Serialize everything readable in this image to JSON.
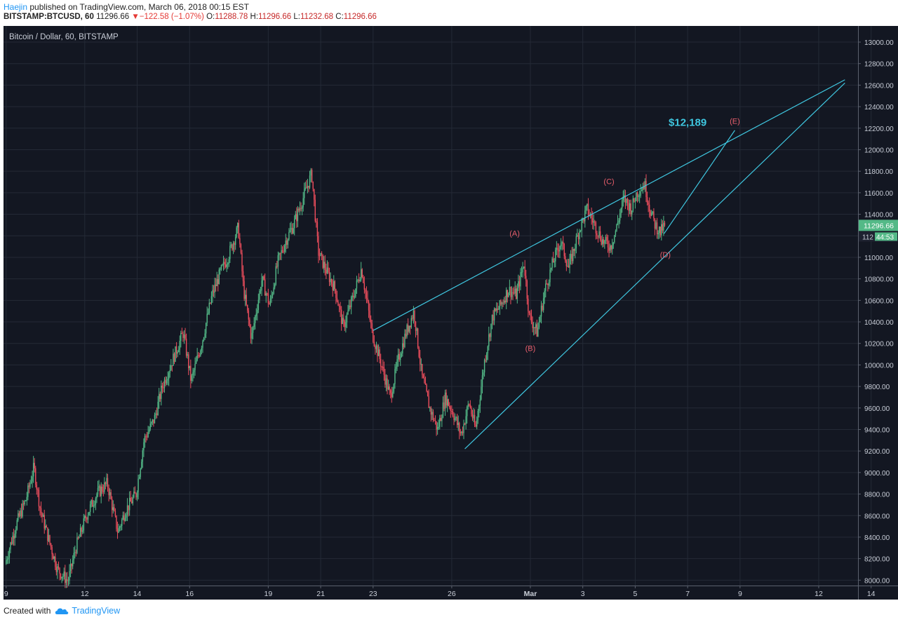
{
  "header": {
    "author": "Haejin",
    "published_text": "published on TradingView.com, March 06, 2018 00:15 EST",
    "symbol": "BITSTAMP:BTCUSD, 60",
    "last": "11296.66",
    "change_arrow": "▼",
    "change": "−122.58 (−1.07%)",
    "o_label": "O:",
    "o_value": "11288.78",
    "h_label": "H:",
    "h_value": "11296.66",
    "l_label": "L:",
    "l_value": "11232.68",
    "c_label": "C:",
    "c_value": "11296.66"
  },
  "footer": {
    "created_with": "Created with",
    "brand": "TradingView"
  },
  "colors": {
    "background": "#131722",
    "grid": "#242a36",
    "up": "#53b987",
    "down": "#eb4d5c",
    "trendline": "#3fc7e0",
    "wave_label": "#e85e6c",
    "price_badge": "#53b987"
  },
  "chart_data": {
    "type": "candlestick",
    "title": "Bitcoin / Dollar, 60, BITSTAMP",
    "interval_minutes": 60,
    "y_axis": {
      "range": [
        7950,
        13150
      ],
      "ticks": [
        8000,
        8200,
        8400,
        8600,
        8800,
        9000,
        9200,
        9400,
        9600,
        9800,
        10000,
        10200,
        10400,
        10600,
        10800,
        11000,
        11200,
        11400,
        11600,
        11800,
        12000,
        12200,
        12400,
        12600,
        12800,
        13000
      ],
      "tick_labels": [
        "8000.00",
        "8200.00",
        "8400.00",
        "8600.00",
        "8800.00",
        "9000.00",
        "9200.00",
        "9400.00",
        "9600.00",
        "9800.00",
        "10000.00",
        "10200.00",
        "10400.00",
        "10600.00",
        "10800.00",
        "11000.00",
        "11200.00",
        "11400.00",
        "11600.00",
        "11800.00",
        "12000.00",
        "12200.00",
        "12400.00",
        "12600.00",
        "12800.00",
        "13000.00"
      ],
      "last_price_label": "11296.66",
      "countdown_label": "44:53",
      "countdown_prefix": "112"
    },
    "x_axis": {
      "range_days": [
        -0.1,
        32.5
      ],
      "ticks": [
        {
          "day": 0,
          "label": "9"
        },
        {
          "day": 3,
          "label": "12"
        },
        {
          "day": 5,
          "label": "14"
        },
        {
          "day": 7,
          "label": "16"
        },
        {
          "day": 10,
          "label": "19"
        },
        {
          "day": 12,
          "label": "21"
        },
        {
          "day": 14,
          "label": "23"
        },
        {
          "day": 17,
          "label": "26"
        },
        {
          "day": 20,
          "label": "Mar"
        },
        {
          "day": 22,
          "label": "3"
        },
        {
          "day": 24,
          "label": "5"
        },
        {
          "day": 26,
          "label": "7"
        },
        {
          "day": 28,
          "label": "9"
        },
        {
          "day": 31,
          "label": "12"
        },
        {
          "day": 33,
          "label": "14"
        }
      ],
      "bold_labels": [
        "Mar"
      ]
    },
    "price_path": [
      [
        0.0,
        8150
      ],
      [
        0.4,
        8500
      ],
      [
        0.8,
        8750
      ],
      [
        1.1,
        9050
      ],
      [
        1.35,
        8650
      ],
      [
        1.7,
        8350
      ],
      [
        2.0,
        8100
      ],
      [
        2.4,
        7990
      ],
      [
        2.7,
        8300
      ],
      [
        3.1,
        8600
      ],
      [
        3.5,
        8800
      ],
      [
        3.9,
        8900
      ],
      [
        4.3,
        8450
      ],
      [
        4.6,
        8650
      ],
      [
        5.0,
        8800
      ],
      [
        5.3,
        9300
      ],
      [
        5.7,
        9500
      ],
      [
        6.0,
        9800
      ],
      [
        6.4,
        10050
      ],
      [
        6.8,
        10300
      ],
      [
        7.1,
        9850
      ],
      [
        7.5,
        10200
      ],
      [
        7.9,
        10650
      ],
      [
        8.2,
        10850
      ],
      [
        8.5,
        11000
      ],
      [
        8.9,
        11280
      ],
      [
        9.1,
        10700
      ],
      [
        9.4,
        10250
      ],
      [
        9.8,
        10800
      ],
      [
        10.1,
        10550
      ],
      [
        10.4,
        10950
      ],
      [
        10.7,
        11150
      ],
      [
        11.0,
        11300
      ],
      [
        11.3,
        11500
      ],
      [
        11.7,
        11780
      ],
      [
        11.95,
        11050
      ],
      [
        12.3,
        10850
      ],
      [
        12.6,
        10700
      ],
      [
        12.9,
        10350
      ],
      [
        13.3,
        10650
      ],
      [
        13.6,
        10900
      ],
      [
        14.0,
        10300
      ],
      [
        14.3,
        10050
      ],
      [
        14.7,
        9700
      ],
      [
        15.0,
        10050
      ],
      [
        15.3,
        10300
      ],
      [
        15.6,
        10500
      ],
      [
        15.9,
        9900
      ],
      [
        16.2,
        9600
      ],
      [
        16.5,
        9400
      ],
      [
        16.8,
        9700
      ],
      [
        17.1,
        9550
      ],
      [
        17.4,
        9350
      ],
      [
        17.7,
        9650
      ],
      [
        17.95,
        9400
      ],
      [
        18.3,
        10050
      ],
      [
        18.6,
        10450
      ],
      [
        18.9,
        10550
      ],
      [
        19.2,
        10700
      ],
      [
        19.5,
        10650
      ],
      [
        19.8,
        10950
      ],
      [
        20.0,
        10450
      ],
      [
        20.3,
        10300
      ],
      [
        20.6,
        10700
      ],
      [
        20.9,
        10950
      ],
      [
        21.2,
        11150
      ],
      [
        21.5,
        10900
      ],
      [
        21.9,
        11250
      ],
      [
        22.2,
        11450
      ],
      [
        22.5,
        11300
      ],
      [
        22.8,
        11150
      ],
      [
        23.1,
        11100
      ],
      [
        23.3,
        11250
      ],
      [
        23.6,
        11550
      ],
      [
        23.9,
        11450
      ],
      [
        24.1,
        11600
      ],
      [
        24.4,
        11680
      ],
      [
        24.6,
        11450
      ],
      [
        24.8,
        11300
      ],
      [
        25.0,
        11230
      ],
      [
        25.15,
        11296
      ]
    ],
    "trendlines": [
      {
        "from": [
          14.0,
          10320
        ],
        "to": [
          32.0,
          12650
        ]
      },
      {
        "from": [
          17.5,
          9220
        ],
        "to": [
          32.0,
          12620
        ]
      },
      {
        "from": [
          25.1,
          11220
        ],
        "to": [
          27.8,
          12180
        ]
      }
    ],
    "wave_labels": [
      {
        "text": "(A)",
        "day": 19.4,
        "price": 11200
      },
      {
        "text": "(B)",
        "day": 20.0,
        "price": 10130
      },
      {
        "text": "(C)",
        "day": 23.0,
        "price": 11680
      },
      {
        "text": "(D)",
        "day": 25.15,
        "price": 11000
      },
      {
        "text": "(E)",
        "day": 27.8,
        "price": 12240
      }
    ],
    "annotation": {
      "text": "$12,189",
      "day": 26.0,
      "price": 12220
    }
  }
}
